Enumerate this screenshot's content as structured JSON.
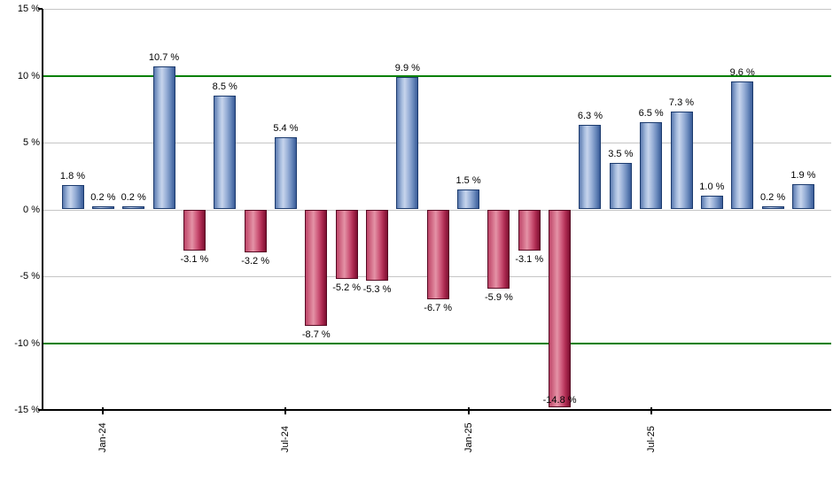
{
  "chart_data": {
    "type": "bar",
    "title": "",
    "xlabel": "",
    "ylabel": "",
    "ylim": [
      -15,
      15
    ],
    "ytick_step": 5,
    "grid": "horizontal-only",
    "legend": "none",
    "yticks": [
      {
        "value": 15,
        "label": "15 %",
        "line_color": "#c6c6c6",
        "line_weight": 1
      },
      {
        "value": 10,
        "label": "10 %",
        "line_color": "#008000",
        "line_weight": 2
      },
      {
        "value": 5,
        "label": "5 %",
        "line_color": "#c6c6c6",
        "line_weight": 1
      },
      {
        "value": 0,
        "label": "0 %",
        "line_color": "#c6c6c6",
        "line_weight": 1
      },
      {
        "value": -5,
        "label": "-5 %",
        "line_color": "#c6c6c6",
        "line_weight": 1
      },
      {
        "value": -10,
        "label": "-10 %",
        "line_color": "#008000",
        "line_weight": 2
      },
      {
        "value": -15,
        "label": "-15 %",
        "line_color": "#000000",
        "line_weight": 2
      }
    ],
    "xticks": [
      {
        "label": "Jan-24",
        "bar_index": 1
      },
      {
        "label": "Jul-24",
        "bar_index": 7
      },
      {
        "label": "Jan-25",
        "bar_index": 13
      },
      {
        "label": "Jul-25",
        "bar_index": 19
      }
    ],
    "bars": [
      {
        "value": 1.8,
        "label": "1.8 %"
      },
      {
        "value": 0.2,
        "label": "0.2 %"
      },
      {
        "value": 0.2,
        "label": "0.2 %"
      },
      {
        "value": 10.7,
        "label": "10.7 %"
      },
      {
        "value": -3.1,
        "label": "-3.1 %"
      },
      {
        "value": 8.5,
        "label": "8.5 %"
      },
      {
        "value": -3.2,
        "label": "-3.2 %"
      },
      {
        "value": 5.4,
        "label": "5.4 %"
      },
      {
        "value": -8.7,
        "label": "-8.7 %"
      },
      {
        "value": -5.2,
        "label": "-5.2 %"
      },
      {
        "value": -5.3,
        "label": "-5.3 %"
      },
      {
        "value": 9.9,
        "label": "9.9 %"
      },
      {
        "value": -6.7,
        "label": "-6.7 %"
      },
      {
        "value": 1.5,
        "label": "1.5 %"
      },
      {
        "value": -5.9,
        "label": "-5.9 %"
      },
      {
        "value": -3.1,
        "label": "-3.1 %"
      },
      {
        "value": -14.8,
        "label": "-14.8 %"
      },
      {
        "value": 6.3,
        "label": "6.3 %"
      },
      {
        "value": 3.5,
        "label": "3.5 %"
      },
      {
        "value": 6.5,
        "label": "6.5 %"
      },
      {
        "value": 7.3,
        "label": "7.3 %"
      },
      {
        "value": 1.0,
        "label": "1.0 %"
      },
      {
        "value": 9.6,
        "label": "9.6 %"
      },
      {
        "value": 0.2,
        "label": "0.2 %"
      },
      {
        "value": 1.9,
        "label": "1.9 %"
      }
    ],
    "colors": {
      "positive_bar": "#7d9ac9",
      "positive_bar_highlight": "#c6d4ec",
      "positive_bar_border": "#1c3b6e",
      "negative_bar": "#c74e70",
      "negative_bar_highlight": "#e492a6",
      "negative_bar_border": "#570a23",
      "grid_minor": "#c6c6c6",
      "grid_major": "#008000",
      "axis": "#000000",
      "background": "#ffffff"
    }
  }
}
